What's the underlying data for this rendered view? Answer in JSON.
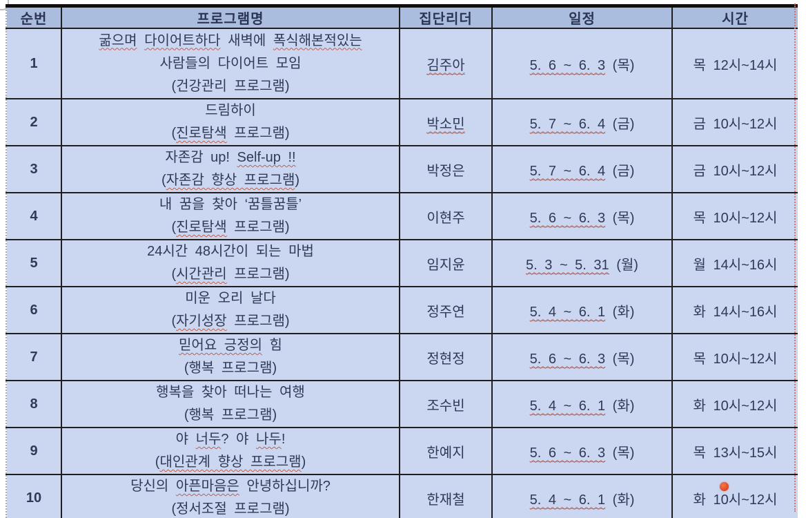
{
  "colors": {
    "header_bg": "#aabdde",
    "cell_bg": "#cbd7f0",
    "text": "#2e3a57",
    "border": "#1f1f1f",
    "spellcheck_underline": "#bf5f4d",
    "page_boundary_line": "#dd6f5c",
    "laser_dot": "#e04a24"
  },
  "table": {
    "columns": [
      {
        "key": "num",
        "label": "순번"
      },
      {
        "key": "name",
        "label": "프로그램명"
      },
      {
        "key": "leader",
        "label": "집단리더"
      },
      {
        "key": "schedule",
        "label": "일정"
      },
      {
        "key": "time",
        "label": "시간"
      }
    ],
    "rows": [
      {
        "num": "1",
        "name_lines": [
          [
            {
              "t": "굶으며",
              "sp": true
            },
            {
              "t": " "
            },
            {
              "t": "다이어트하다",
              "sp": true
            },
            {
              "t": " 새벽에 "
            },
            {
              "t": "폭식해본적있는",
              "sp": true
            }
          ],
          [
            {
              "t": "사람들의 다이어트 모임"
            }
          ],
          [
            {
              "t": "(건강관리 프로그램)"
            }
          ]
        ],
        "leader": {
          "t": "김주아",
          "sp": true,
          "u": true
        },
        "schedule": {
          "dates": "5. 6 ~ 6. 3",
          "day": "(목)"
        },
        "time": "목 12시~14시"
      },
      {
        "num": "2",
        "name_lines": [
          [
            {
              "t": "드림하이"
            }
          ],
          [
            {
              "t": "("
            },
            {
              "t": "진로탐색",
              "sp": true
            },
            {
              "t": " 프로그램)"
            }
          ]
        ],
        "leader": {
          "t": "박소민",
          "sp": true,
          "u": true
        },
        "schedule": {
          "dates": "5. 7 ~ 6. 4",
          "day": "(금)"
        },
        "time": "금 10시~12시"
      },
      {
        "num": "3",
        "name_lines": [
          [
            {
              "t": "자존감 up! "
            },
            {
              "t": "Self-up !!",
              "sp": true
            }
          ],
          [
            {
              "t": "("
            },
            {
              "t": "자존감 향상 프로그램",
              "sp": true
            },
            {
              "t": ")"
            }
          ]
        ],
        "leader": {
          "t": "박정은"
        },
        "schedule": {
          "dates": "5. 7 ~ 6. 4",
          "day": "(금)"
        },
        "time": "금 10시~12시"
      },
      {
        "num": "4",
        "name_lines": [
          [
            {
              "t": "내 꿈을 찾아 ‘꿈틀꿈틀’"
            }
          ],
          [
            {
              "t": "("
            },
            {
              "t": "진로탐색",
              "sp": true
            },
            {
              "t": " 프로그램)"
            }
          ]
        ],
        "leader": {
          "t": "이현주"
        },
        "schedule": {
          "dates": "5. 6 ~ 6. 3",
          "day": "(목)"
        },
        "time": "목 10시~12시"
      },
      {
        "num": "5",
        "name_lines": [
          [
            {
              "t": "24시간 48시간이 되는 마법"
            }
          ],
          [
            {
              "t": "("
            },
            {
              "t": "시간관리",
              "sp": true
            },
            {
              "t": " 프로그램)"
            }
          ]
        ],
        "leader": {
          "t": "임지윤"
        },
        "schedule": {
          "dates": "5. 3 ~ 5. 31",
          "day": "(월)"
        },
        "time": "월 14시~16시"
      },
      {
        "num": "6",
        "name_lines": [
          [
            {
              "t": "미운 오리 날다"
            }
          ],
          [
            {
              "t": "("
            },
            {
              "t": "자기성장",
              "sp": true
            },
            {
              "t": " 프로그램)"
            }
          ]
        ],
        "leader": {
          "t": "정주연"
        },
        "schedule": {
          "dates": "5. 4 ~ 6. 1",
          "day": "(화)"
        },
        "time": "화 14시~16시"
      },
      {
        "num": "7",
        "name_lines": [
          [
            {
              "t": "믿어요 긍정의",
              "sp": true
            },
            {
              "t": " 힘"
            }
          ],
          [
            {
              "t": "(행복 프로그램)"
            }
          ]
        ],
        "leader": {
          "t": "정현정"
        },
        "schedule": {
          "dates": "5. 6 ~ 6. 3",
          "day": "(목)"
        },
        "time": "목 10시~12시"
      },
      {
        "num": "8",
        "name_lines": [
          [
            {
              "t": "행복을 찾아 떠나는 여행"
            }
          ],
          [
            {
              "t": "(행복 프로그램)"
            }
          ]
        ],
        "leader": {
          "t": "조수빈"
        },
        "schedule": {
          "dates": "5. 4 ~ 6. 1",
          "day": "(화)"
        },
        "time": "화 10시~12시"
      },
      {
        "num": "9",
        "name_lines": [
          [
            {
              "t": "야 "
            },
            {
              "t": "너두",
              "sp": true
            },
            {
              "t": "? 야 "
            },
            {
              "t": "나두",
              "sp": true
            },
            {
              "t": "!"
            }
          ],
          [
            {
              "t": "("
            },
            {
              "t": "대인관계 향상 프로그램",
              "sp": true
            },
            {
              "t": ")"
            }
          ]
        ],
        "leader": {
          "t": "한예지"
        },
        "schedule": {
          "dates": "5. 6 ~ 6. 3",
          "day": "(목)"
        },
        "time": "목 13시~15시"
      },
      {
        "num": "10",
        "name_lines": [
          [
            {
              "t": "당신의 "
            },
            {
              "t": "아픈마음은",
              "sp": true
            },
            {
              "t": " 안녕하십니까?"
            }
          ],
          [
            {
              "t": "(정서조절 프로그램)"
            }
          ]
        ],
        "leader": {
          "t": "한재철"
        },
        "schedule": {
          "dates": "5. 4 ~ 6. 1",
          "day": "(화)"
        },
        "time": "화 10시~12시"
      }
    ]
  }
}
